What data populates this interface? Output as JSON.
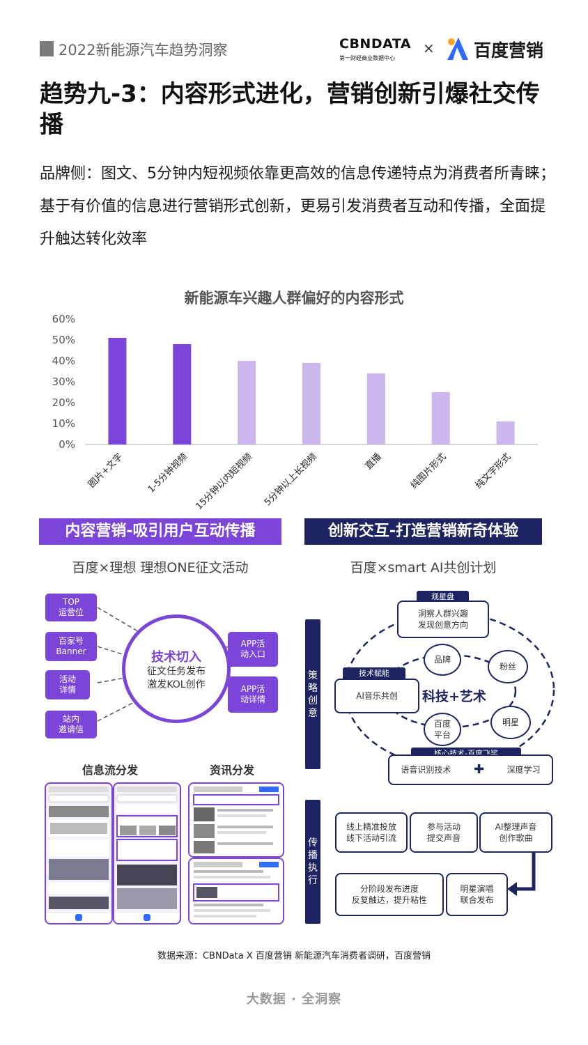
{
  "header": {
    "report_title": "2022新能源汽车趋势洞察",
    "partner_logo_text": "CBNDATA",
    "partner_logo_sub": "第一财经商业数据中心",
    "times": "×",
    "brand_text": "百度营销"
  },
  "page_title": "趋势九-3：内容形式进化，营销创新引爆社交传播",
  "intro": "品牌侧：图文、5分钟内短视频依靠更高效的信息传递特点为消费者所青睐；基于有价值的信息进行营销形式创新，更易引发消费者互动和传播，全面提升触达转化效率",
  "chart_data": {
    "type": "bar",
    "title": "新能源车兴趣人群偏好的内容形式",
    "categories": [
      "图片+文字",
      "1-5分钟视频",
      "15分钟以内短视频",
      "5分钟以上长视频",
      "直播",
      "纯图片形式",
      "纯文字形式"
    ],
    "values": [
      51,
      48,
      40,
      39,
      34,
      25,
      11
    ],
    "highlight": [
      true,
      true,
      false,
      false,
      false,
      false,
      false
    ],
    "yticks": [
      "0%",
      "10%",
      "20%",
      "30%",
      "40%",
      "50%",
      "60%"
    ],
    "ylim": [
      0,
      60
    ],
    "colors": {
      "highlight": "#7a45d8",
      "normal": "#cbb6ee"
    }
  },
  "left_section": {
    "banner": "内容营销-吸引用户互动传播",
    "subtitle": "百度×理想 理想ONE征文活动",
    "left_pills": [
      "TOP\n运营位",
      "百家号\nBanner",
      "活动\n详情",
      "站内\n邀请信"
    ],
    "right_pills": [
      "APP活\n动入口",
      "APP活\n动详情"
    ],
    "circle_title": "技术切入",
    "circle_line1": "征文任务发布",
    "circle_line2": "激发KOL创作",
    "feed_label": "信息流分发",
    "news_label": "资讯分发"
  },
  "right_section": {
    "banner": "创新交互-打造营销新奇体验",
    "subtitle": "百度×smart AI共创计划",
    "strategy_label": "策\n略\n创\n意",
    "execution_label": "传\n播\n执\n行",
    "observe_label": "观星盘",
    "observe_text": "洞察人群兴趣\n发现创意方向",
    "tech_label": "技术赋能",
    "tech_text": "AI音乐共创",
    "center_text": "科技+艺术",
    "nodes": [
      "品牌",
      "粉丝",
      "明星",
      "百度\n平台"
    ],
    "core_label": "核心技术-百度飞桨",
    "core_left": "语音识别技术",
    "core_plus": "✚",
    "core_right": "深度学习",
    "steps": [
      "线上精准投放\n线下活动引流",
      "参与活动\n提交声音",
      "AI整理声音\n创作歌曲",
      "明星演唱\n联合发布",
      "分阶段发布进度\n反复触达，提升粘性"
    ]
  },
  "source": "数据来源：CBNData X 百度营销 新能源汽车消费者调研，百度营销",
  "footer": "大数据 · 全洞察"
}
